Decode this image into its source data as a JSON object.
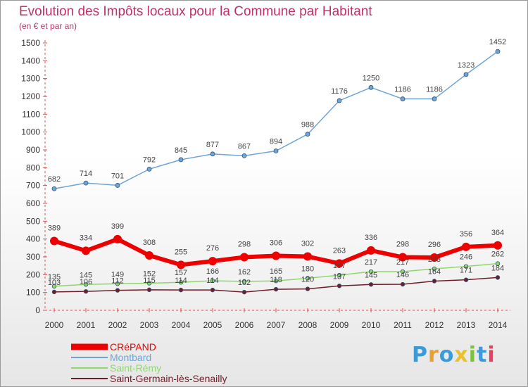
{
  "title": "Evolution des Impôts locaux pour la Commune par Habitant",
  "subtitle": "(en € et par an)",
  "logo": {
    "letters": [
      "P",
      "r",
      "o",
      "x",
      "i",
      "t",
      "i"
    ],
    "colors": [
      "#3b9ad8",
      "#e8a030",
      "#3b9ad8",
      "#e8c030",
      "#7cc23a",
      "#3b9ad8",
      "#e84060"
    ]
  },
  "chart_data": {
    "type": "line",
    "x": [
      "2000",
      "2001",
      "2002",
      "2003",
      "2004",
      "2005",
      "2006",
      "2007",
      "2008",
      "2009",
      "2010",
      "2011",
      "2012",
      "2013",
      "2014"
    ],
    "ylim": [
      0,
      1500
    ],
    "yticks": [
      0,
      100,
      200,
      300,
      400,
      500,
      600,
      700,
      800,
      900,
      1000,
      1100,
      1200,
      1300,
      1400,
      1500
    ],
    "grid": false,
    "legend": "bottom-left",
    "series": [
      {
        "name": "Saint-Germain-lès-Senailly",
        "color": "#6e1e28",
        "width": 1.5,
        "marker": 2.8,
        "values": [
          103,
          106,
          112,
          115,
          114,
          114,
          102,
          118,
          120,
          137,
          145,
          146,
          164,
          171,
          184
        ]
      },
      {
        "name": "Saint-Rémy",
        "color": "#8ed86a",
        "width": 1.5,
        "marker": 2.8,
        "values": [
          135,
          145,
          149,
          152,
          157,
          166,
          162,
          165,
          180,
          197,
          217,
          217,
          233,
          246,
          262
        ]
      },
      {
        "name": "CRéPAND",
        "color": "#ee0000",
        "width": 6,
        "marker": 6,
        "values": [
          389,
          334,
          399,
          308,
          255,
          276,
          298,
          306,
          302,
          263,
          336,
          298,
          296,
          356,
          364
        ]
      },
      {
        "name": "Montbard",
        "color": "#6fa5d6",
        "width": 1.5,
        "marker": 3,
        "values": [
          682,
          714,
          701,
          792,
          845,
          877,
          867,
          894,
          988,
          1176,
          1250,
          1186,
          1186,
          1323,
          1452
        ]
      }
    ]
  },
  "legend_items": [
    {
      "name": "CRéPAND",
      "color": "#ee0000",
      "width": 9
    },
    {
      "name": "Montbard",
      "color": "#6fa5d6",
      "width": 2
    },
    {
      "name": "Saint-Rémy",
      "color": "#8ed86a",
      "width": 2
    },
    {
      "name": "Saint-Germain-lès-Senailly",
      "color": "#6e1e28",
      "width": 2
    }
  ]
}
